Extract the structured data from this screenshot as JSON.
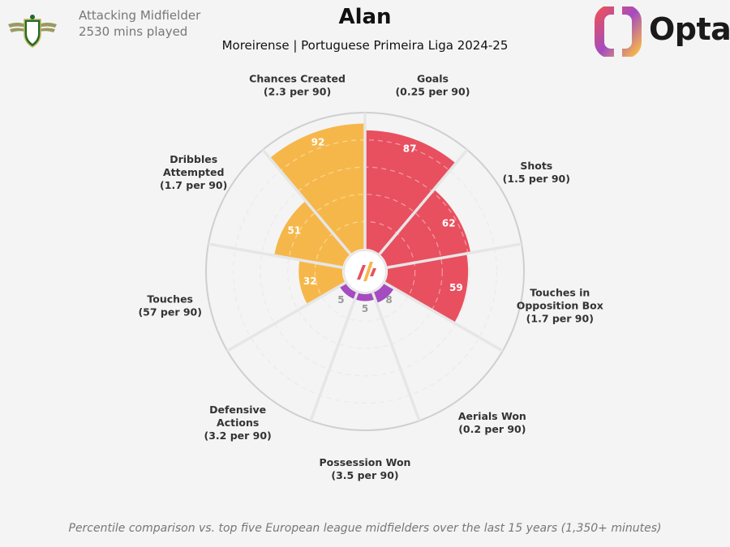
{
  "header": {
    "role": "Attacking Midfielder",
    "minutes": "2530 mins played",
    "player_name": "Alan",
    "subtitle": "Moreirense | Portuguese Primeira Liga 2024-25",
    "brand": "Opta"
  },
  "footnote": "Percentile comparison vs. top five European league midfielders over the last 15 years (1,350+ minutes)",
  "colors": {
    "attacking": "#e8505f",
    "possession": "#f6b74a",
    "defending": "#a44cc0",
    "background": "#f4f4f4"
  },
  "chart_data": {
    "type": "radial-bar",
    "scale": [
      0,
      100
    ],
    "metrics": [
      {
        "label": [
          "Goals",
          "(0.25 per 90)"
        ],
        "percentile": 87,
        "group": "attacking"
      },
      {
        "label": [
          "Shots",
          "(1.5 per 90)"
        ],
        "percentile": 62,
        "group": "attacking"
      },
      {
        "label": [
          "Touches in",
          "Opposition Box",
          "(1.7 per 90)"
        ],
        "percentile": 59,
        "group": "attacking"
      },
      {
        "label": [
          "Aerials Won",
          "(0.2 per 90)"
        ],
        "percentile": 8,
        "group": "defending"
      },
      {
        "label": [
          "Possession Won",
          "(3.5 per 90)"
        ],
        "percentile": 5,
        "group": "defending"
      },
      {
        "label": [
          "Defensive",
          "Actions",
          "(3.2 per 90)"
        ],
        "percentile": 5,
        "group": "defending"
      },
      {
        "label": [
          "Touches",
          "(57 per 90)"
        ],
        "percentile": 32,
        "group": "possession"
      },
      {
        "label": [
          "Dribbles",
          "Attempted",
          "(1.7 per 90)"
        ],
        "percentile": 51,
        "group": "possession"
      },
      {
        "label": [
          "Chances Created",
          "(2.3 per 90)"
        ],
        "percentile": 92,
        "group": "possession"
      }
    ]
  }
}
